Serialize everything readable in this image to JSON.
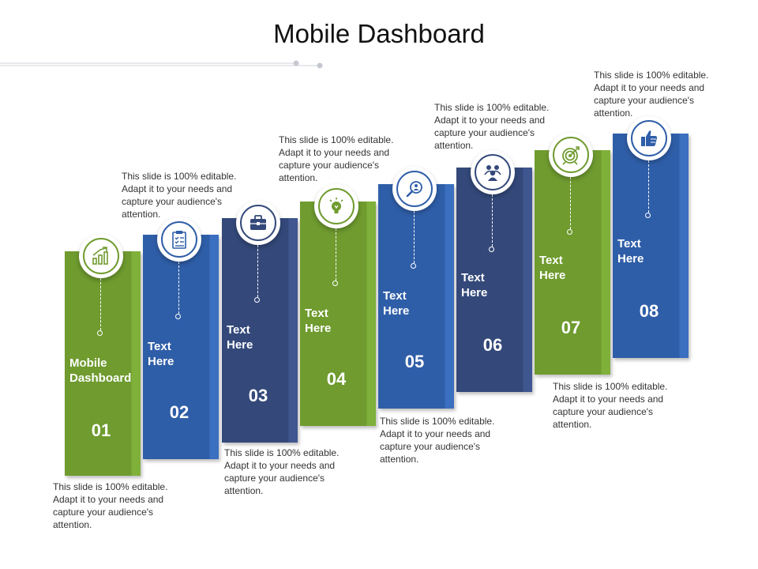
{
  "title": "Mobile Dashboard",
  "colors": {
    "green": "#6f9b2f",
    "green_edge": "#7fb03a",
    "blue": "#2f5ea8",
    "blue_edge": "#3b6fc0",
    "navy": "#34497a",
    "navy_edge": "#3f5690"
  },
  "steps": [
    {
      "number": "01",
      "label": "Mobile\nDashboard",
      "icon": "bar-chart-growth-icon",
      "color": "green"
    },
    {
      "number": "02",
      "label": "Text\nHere",
      "icon": "clipboard-checklist-icon",
      "color": "blue"
    },
    {
      "number": "03",
      "label": "Text\nHere",
      "icon": "briefcase-icon",
      "color": "navy"
    },
    {
      "number": "04",
      "label": "Text\nHere",
      "icon": "lightbulb-icon",
      "color": "green"
    },
    {
      "number": "05",
      "label": "Text\nHere",
      "icon": "magnifier-person-icon",
      "color": "blue"
    },
    {
      "number": "06",
      "label": "Text\nHere",
      "icon": "team-icon",
      "color": "navy"
    },
    {
      "number": "07",
      "label": "Text\nHere",
      "icon": "target-icon",
      "color": "green"
    },
    {
      "number": "08",
      "label": "Text\nHere",
      "icon": "thumbs-up-icon",
      "color": "blue"
    }
  ],
  "description": "This slide is 100% editable. Adapt it to your needs and capture your audience's attention."
}
